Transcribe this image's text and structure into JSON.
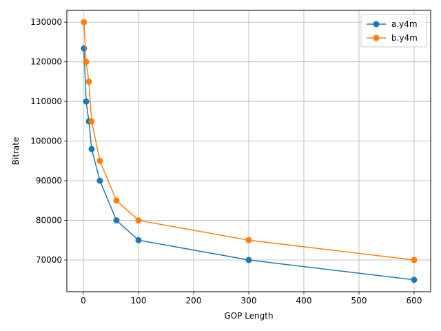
{
  "chart_data": {
    "type": "line",
    "title": "",
    "xlabel": "GOP Length",
    "ylabel": "Bitrate",
    "xlim": [
      -30,
      630
    ],
    "ylim": [
      62000,
      133000
    ],
    "xticks": [
      0,
      100,
      200,
      300,
      400,
      500,
      600
    ],
    "yticks": [
      70000,
      80000,
      90000,
      100000,
      110000,
      120000,
      130000
    ],
    "grid": true,
    "legend_position": "top-right",
    "series": [
      {
        "name": "a.y4m",
        "color": "#1f77b4",
        "x": [
          1,
          5,
          10,
          15,
          30,
          60,
          100,
          300,
          600
        ],
        "y": [
          123400,
          110000,
          105000,
          98000,
          90000,
          80000,
          75000,
          70000,
          65000
        ]
      },
      {
        "name": "b.y4m",
        "color": "#ff7f0e",
        "x": [
          1,
          5,
          10,
          15,
          30,
          60,
          100,
          300,
          600
        ],
        "y": [
          130000,
          120000,
          115000,
          105000,
          95000,
          85000,
          80000,
          75000,
          70000
        ]
      }
    ]
  }
}
